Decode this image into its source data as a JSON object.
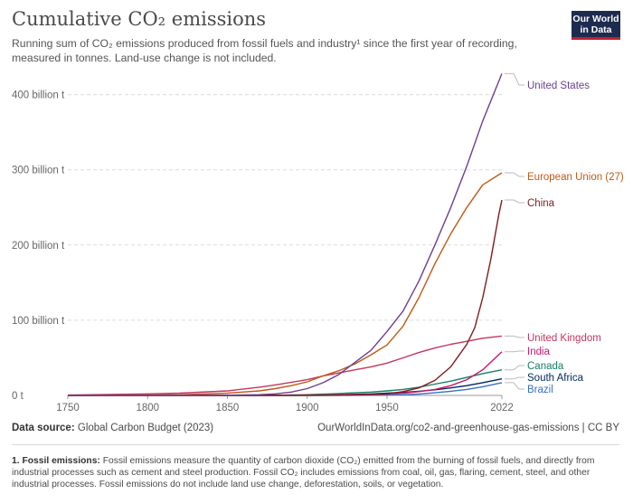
{
  "header": {
    "title": "Cumulative CO₂ emissions",
    "subtitle": "Running sum of CO₂ emissions produced from fossil fuels and industry¹ since the first year of recording, measured in tonnes. Land-use change is not included.",
    "logo_line1": "Our World",
    "logo_line2": "in Data",
    "logo_color": "#1d2b4f",
    "logo_accent": "#c3202f"
  },
  "footer": {
    "source_label": "Data source:",
    "source_value": "Global Carbon Budget (2023)",
    "link": "OurWorldInData.org/co2-and-greenhouse-gas-emissions",
    "license": "| CC BY"
  },
  "note": {
    "label": "1. Fossil emissions:",
    "text": "Fossil emissions measure the quantity of carbon dioxide (CO₂) emitted from the burning of fossil fuels, and directly from industrial processes such as cement and steel production. Fossil CO₂ includes emissions from coal, oil, gas, flaring, cement, steel, and other industrial processes. Fossil emissions do not include land use change, deforestation, soils, or vegetation."
  },
  "chart_data": {
    "type": "line",
    "xlim": [
      1750,
      2022
    ],
    "ylim": [
      0,
      420
    ],
    "x_ticks": [
      1750,
      1800,
      1850,
      1900,
      1950,
      2022
    ],
    "y_ticks": [
      0,
      100,
      200,
      300,
      400
    ],
    "y_tick_labels": [
      "0 t",
      "100 billion t",
      "200 billion t",
      "300 billion t",
      "400 billion t"
    ],
    "grid": "horizontal dashed",
    "legend": "right (line-end labels)",
    "series": [
      {
        "name": "United States",
        "color": "#6d3e91",
        "points": [
          [
            1750,
            0
          ],
          [
            1800,
            0.1
          ],
          [
            1850,
            0.3
          ],
          [
            1870,
            1
          ],
          [
            1880,
            2
          ],
          [
            1890,
            4.5
          ],
          [
            1900,
            9
          ],
          [
            1910,
            17
          ],
          [
            1920,
            28
          ],
          [
            1930,
            44
          ],
          [
            1940,
            60
          ],
          [
            1950,
            85
          ],
          [
            1960,
            112
          ],
          [
            1970,
            152
          ],
          [
            1980,
            200
          ],
          [
            1990,
            250
          ],
          [
            2000,
            305
          ],
          [
            2010,
            365
          ],
          [
            2022,
            428
          ]
        ]
      },
      {
        "name": "European Union (27)",
        "color": "#c05917",
        "points": [
          [
            1750,
            0
          ],
          [
            1800,
            0.6
          ],
          [
            1820,
            1
          ],
          [
            1850,
            3
          ],
          [
            1870,
            6
          ],
          [
            1880,
            9
          ],
          [
            1890,
            13
          ],
          [
            1900,
            18
          ],
          [
            1910,
            26
          ],
          [
            1920,
            33
          ],
          [
            1930,
            42
          ],
          [
            1940,
            54
          ],
          [
            1950,
            67
          ],
          [
            1960,
            92
          ],
          [
            1970,
            130
          ],
          [
            1980,
            175
          ],
          [
            1990,
            215
          ],
          [
            2000,
            250
          ],
          [
            2010,
            280
          ],
          [
            2022,
            296
          ]
        ]
      },
      {
        "name": "China",
        "color": "#801c1c",
        "points": [
          [
            1750,
            0
          ],
          [
            1900,
            0
          ],
          [
            1920,
            0.3
          ],
          [
            1940,
            1
          ],
          [
            1950,
            2
          ],
          [
            1960,
            5
          ],
          [
            1970,
            10
          ],
          [
            1980,
            20
          ],
          [
            1990,
            38
          ],
          [
            2000,
            68
          ],
          [
            2005,
            90
          ],
          [
            2010,
            130
          ],
          [
            2015,
            180
          ],
          [
            2020,
            240
          ],
          [
            2022,
            260
          ]
        ]
      },
      {
        "name": "United Kingdom",
        "color": "#c4365d",
        "points": [
          [
            1750,
            0.5
          ],
          [
            1800,
            2
          ],
          [
            1820,
            3
          ],
          [
            1850,
            6
          ],
          [
            1870,
            11
          ],
          [
            1880,
            14
          ],
          [
            1900,
            21
          ],
          [
            1910,
            26
          ],
          [
            1920,
            30
          ],
          [
            1930,
            34
          ],
          [
            1940,
            38
          ],
          [
            1950,
            43
          ],
          [
            1960,
            50
          ],
          [
            1970,
            57
          ],
          [
            1980,
            63
          ],
          [
            1990,
            68
          ],
          [
            2000,
            72
          ],
          [
            2010,
            76
          ],
          [
            2022,
            79
          ]
        ]
      },
      {
        "name": "India",
        "color": "#c8176e",
        "points": [
          [
            1750,
            0
          ],
          [
            1900,
            0.2
          ],
          [
            1920,
            0.8
          ],
          [
            1940,
            1.5
          ],
          [
            1950,
            2
          ],
          [
            1960,
            3
          ],
          [
            1970,
            5
          ],
          [
            1980,
            8
          ],
          [
            1990,
            13
          ],
          [
            2000,
            21
          ],
          [
            2010,
            34
          ],
          [
            2015,
            44
          ],
          [
            2022,
            58
          ]
        ]
      },
      {
        "name": "Canada",
        "color": "#187f68",
        "points": [
          [
            1750,
            0
          ],
          [
            1880,
            0.2
          ],
          [
            1900,
            1
          ],
          [
            1920,
            2.5
          ],
          [
            1940,
            4.5
          ],
          [
            1950,
            6
          ],
          [
            1960,
            8
          ],
          [
            1970,
            11
          ],
          [
            1980,
            15
          ],
          [
            1990,
            19
          ],
          [
            2000,
            24
          ],
          [
            2010,
            29
          ],
          [
            2022,
            34
          ]
        ]
      },
      {
        "name": "South Africa",
        "color": "#00295b",
        "points": [
          [
            1750,
            0
          ],
          [
            1900,
            0.2
          ],
          [
            1920,
            1
          ],
          [
            1940,
            2
          ],
          [
            1950,
            3
          ],
          [
            1960,
            4
          ],
          [
            1970,
            5.5
          ],
          [
            1980,
            7.5
          ],
          [
            1990,
            10
          ],
          [
            2000,
            13
          ],
          [
            2010,
            17
          ],
          [
            2022,
            22
          ]
        ]
      },
      {
        "name": "Brazil",
        "color": "#3a72c2",
        "points": [
          [
            1750,
            0
          ],
          [
            1920,
            0.1
          ],
          [
            1940,
            0.4
          ],
          [
            1950,
            0.6
          ],
          [
            1960,
            1
          ],
          [
            1970,
            1.8
          ],
          [
            1980,
            3.5
          ],
          [
            1990,
            5.5
          ],
          [
            2000,
            8
          ],
          [
            2010,
            11.5
          ],
          [
            2022,
            17
          ]
        ]
      }
    ],
    "label_color": "#17324f"
  }
}
